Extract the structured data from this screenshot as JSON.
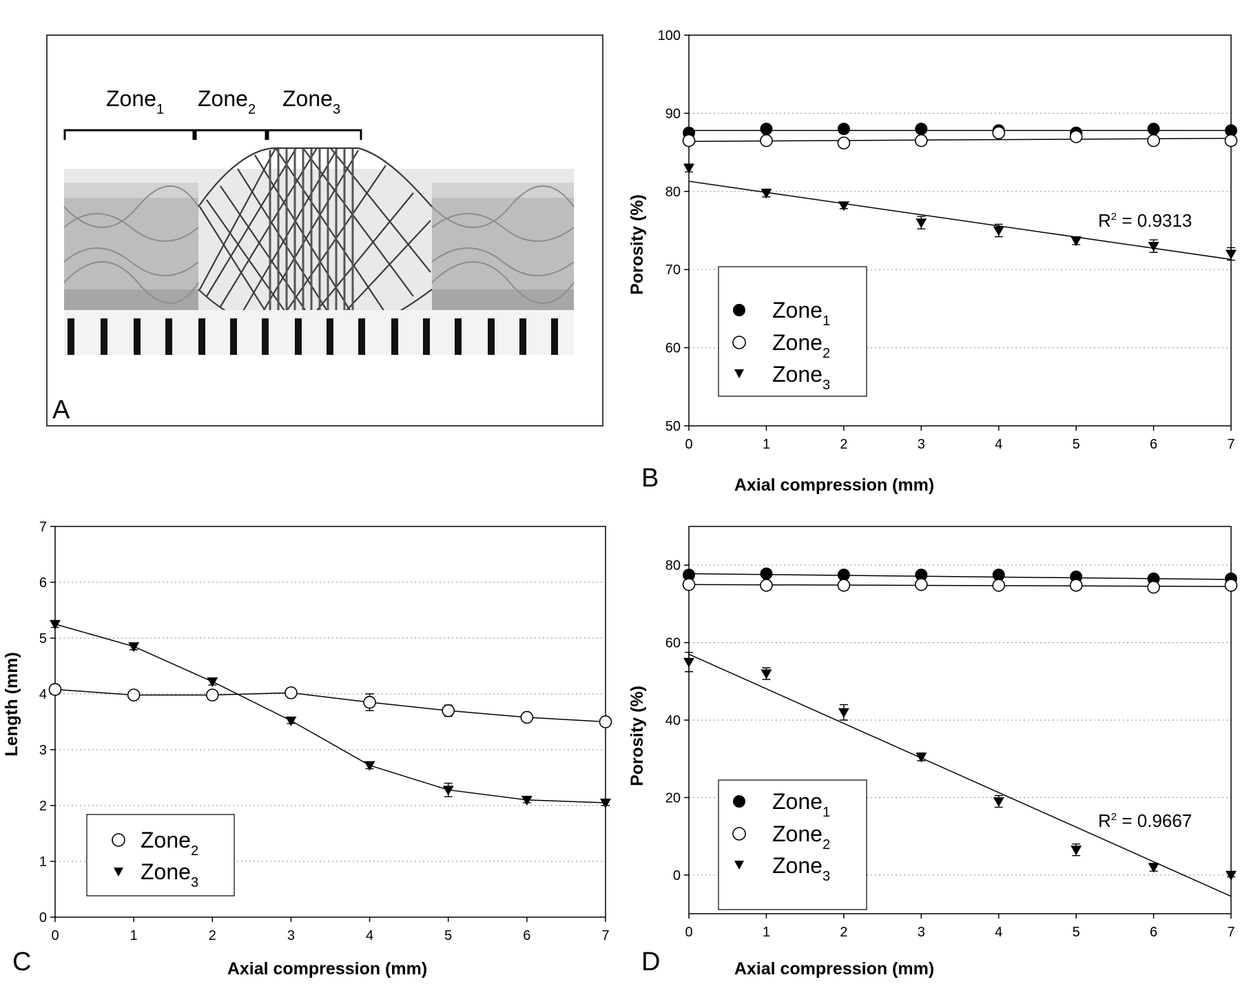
{
  "panel_labels": {
    "a": "A",
    "b": "B",
    "c": "C",
    "d": "D"
  },
  "photo": {
    "zone_labels": [
      {
        "base": "Zone",
        "sub": "1"
      },
      {
        "base": "Zone",
        "sub": "2"
      },
      {
        "base": "Zone",
        "sub": "3"
      }
    ]
  },
  "chart_data": [
    {
      "id": "B",
      "type": "scatter",
      "xlabel": "Axial compression (mm)",
      "ylabel": "Porosity (%)",
      "xlim": [
        0,
        7
      ],
      "ylim": [
        50,
        100
      ],
      "xticks": [
        0,
        1,
        2,
        3,
        4,
        5,
        6,
        7
      ],
      "yticks": [
        50,
        60,
        70,
        80,
        90,
        100
      ],
      "grid": "horizontal dotted",
      "legend_position": "lower-left",
      "annotation": {
        "base": "R",
        "sup": "2",
        "rest": " = 0.9313"
      },
      "series": [
        {
          "name": "Zone",
          "sub": "1",
          "marker": "filled-circle",
          "x": [
            0,
            1,
            2,
            3,
            4,
            5,
            6,
            7
          ],
          "y": [
            87.5,
            88.0,
            88.0,
            88.0,
            87.8,
            87.5,
            88.0,
            87.8
          ],
          "err": [
            0.3,
            0.3,
            0.3,
            0.3,
            0.3,
            0.3,
            0.3,
            0.3
          ],
          "fit": [
            [
              0,
              87.8
            ],
            [
              7,
              87.8
            ]
          ]
        },
        {
          "name": "Zone",
          "sub": "2",
          "marker": "open-circle",
          "x": [
            0,
            1,
            2,
            3,
            4,
            5,
            6,
            7
          ],
          "y": [
            86.5,
            86.5,
            86.2,
            86.5,
            87.5,
            87.0,
            86.5,
            86.5
          ],
          "err": [
            0.3,
            0.3,
            0.3,
            0.3,
            0.3,
            0.3,
            0.3,
            0.3
          ],
          "fit": [
            [
              0,
              86.4
            ],
            [
              7,
              86.8
            ]
          ]
        },
        {
          "name": "Zone",
          "sub": "3",
          "marker": "filled-triangle-down",
          "x": [
            0,
            1,
            2,
            3,
            4,
            5,
            6,
            7
          ],
          "y": [
            83.0,
            79.8,
            78.2,
            76.0,
            75.0,
            73.7,
            73.0,
            72.0
          ],
          "err": [
            0.5,
            0.5,
            0.4,
            0.8,
            0.8,
            0.5,
            0.8,
            0.8
          ],
          "fit": [
            [
              0,
              81.3
            ],
            [
              7,
              71.3
            ]
          ]
        }
      ]
    },
    {
      "id": "C",
      "type": "line",
      "xlabel": "Axial compression (mm)",
      "ylabel": "Length (mm)",
      "xlim": [
        0,
        7
      ],
      "ylim": [
        0,
        7
      ],
      "xticks": [
        0,
        1,
        2,
        3,
        4,
        5,
        6,
        7
      ],
      "yticks": [
        0,
        1,
        2,
        3,
        4,
        5,
        6,
        7
      ],
      "grid": "horizontal dotted",
      "legend_position": "lower-left",
      "series": [
        {
          "name": "Zone",
          "sub": "2",
          "marker": "open-circle",
          "x": [
            0,
            1,
            2,
            3,
            4,
            5,
            6,
            7
          ],
          "y": [
            4.08,
            3.98,
            3.98,
            4.02,
            3.85,
            3.7,
            3.58,
            3.5
          ],
          "err": [
            0.08,
            0.05,
            0.05,
            0.04,
            0.15,
            0.1,
            0.06,
            0.06
          ]
        },
        {
          "name": "Zone",
          "sub": "3",
          "marker": "filled-triangle-down",
          "x": [
            0,
            1,
            2,
            3,
            4,
            5,
            6,
            7
          ],
          "y": [
            5.25,
            4.85,
            4.22,
            3.52,
            2.72,
            2.28,
            2.1,
            2.05
          ],
          "err": [
            0.06,
            0.06,
            0.06,
            0.05,
            0.06,
            0.12,
            0.05,
            0.05
          ]
        }
      ]
    },
    {
      "id": "D",
      "type": "scatter",
      "xlabel": "Axial compression (mm)",
      "ylabel": "Porosity (%)",
      "xlim": [
        0,
        7
      ],
      "ylim": [
        -10,
        90
      ],
      "xticks": [
        0,
        1,
        2,
        3,
        4,
        5,
        6,
        7
      ],
      "yticks": [
        0,
        20,
        40,
        60,
        80
      ],
      "grid": "horizontal dotted",
      "legend_position": "lower-left",
      "annotation": {
        "base": "R",
        "sup": "2",
        "rest": " = 0.9667"
      },
      "series": [
        {
          "name": "Zone",
          "sub": "1",
          "marker": "filled-circle",
          "x": [
            0,
            1,
            2,
            3,
            4,
            5,
            6,
            7
          ],
          "y": [
            77.5,
            77.8,
            77.5,
            77.5,
            77.5,
            77.0,
            76.5,
            76.5
          ],
          "err": [
            0.5,
            0.5,
            0.5,
            0.5,
            0.5,
            0.5,
            0.5,
            0.5
          ],
          "fit": [
            [
              0,
              77.8
            ],
            [
              7,
              76.3
            ]
          ]
        },
        {
          "name": "Zone",
          "sub": "2",
          "marker": "open-circle",
          "x": [
            0,
            1,
            2,
            3,
            4,
            5,
            6,
            7
          ],
          "y": [
            75.0,
            74.8,
            74.8,
            75.0,
            74.8,
            74.8,
            74.3,
            74.8
          ],
          "err": [
            0.5,
            0.5,
            0.5,
            0.5,
            0.5,
            0.5,
            0.5,
            0.5
          ],
          "fit": [
            [
              0,
              75.0
            ],
            [
              7,
              74.5
            ]
          ]
        },
        {
          "name": "Zone",
          "sub": "3",
          "marker": "filled-triangle-down",
          "x": [
            0,
            1,
            2,
            3,
            4,
            5,
            6,
            7
          ],
          "y": [
            55.0,
            52.0,
            42.0,
            30.5,
            19.0,
            6.5,
            2.0,
            0.0
          ],
          "err": [
            2.5,
            1.5,
            2.0,
            1.0,
            1.5,
            1.5,
            1.0,
            0.5
          ],
          "fit": [
            [
              0,
              57.0
            ],
            [
              7,
              -5.5
            ]
          ]
        }
      ]
    }
  ]
}
